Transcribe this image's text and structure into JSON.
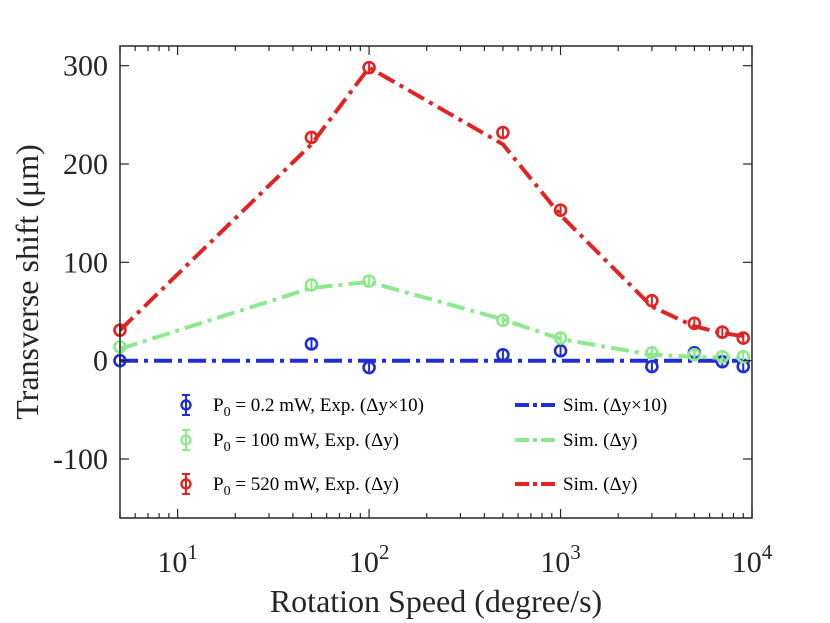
{
  "chart_data": {
    "type": "scatter",
    "xlabel": "Rotation Speed (degree/s)",
    "ylabel": "Transverse shift (μm)",
    "xscale": "log",
    "xlim": [
      5,
      10000
    ],
    "ylim": [
      -160,
      320
    ],
    "grid": false,
    "legend_placement": "bottom-center",
    "x_ticks": [
      {
        "value": 10,
        "base": "10",
        "exp": "1"
      },
      {
        "value": 100,
        "base": "10",
        "exp": "2"
      },
      {
        "value": 1000,
        "base": "10",
        "exp": "3"
      },
      {
        "value": 10000,
        "base": "10",
        "exp": "4"
      }
    ],
    "y_ticks": [
      {
        "value": 300,
        "label": "300"
      },
      {
        "value": 200,
        "label": "200"
      },
      {
        "value": 100,
        "label": "100"
      },
      {
        "value": 0,
        "label": "0"
      },
      {
        "value": -100,
        "label": "-100"
      }
    ],
    "experiment_series": [
      {
        "color": "#1f2ed6",
        "x": [
          5,
          50,
          100,
          500,
          1000,
          3000,
          5000,
          7000,
          9000
        ],
        "y": [
          0,
          17,
          -7,
          6,
          10,
          -6,
          8,
          -1,
          -6
        ],
        "legend": {
          "prefix": "P",
          "sub": "0",
          "suffix": " = 0.2 mW, Exp. (Δy×10)"
        }
      },
      {
        "color": "#8ee88e",
        "x": [
          5,
          50,
          100,
          500,
          1000,
          3000,
          5000,
          7000,
          9000
        ],
        "y": [
          14,
          77,
          81,
          41,
          23,
          8,
          6,
          4,
          4
        ],
        "legend": {
          "prefix": "P",
          "sub": "0",
          "suffix": " = 100 mW, Exp. (Δy)"
        }
      },
      {
        "color": "#e02424",
        "x": [
          5,
          50,
          100,
          500,
          1000,
          3000,
          5000,
          7000,
          9000
        ],
        "y": [
          31,
          227,
          298,
          232,
          153,
          61,
          38,
          29,
          23
        ],
        "legend": {
          "prefix": "P",
          "sub": "0",
          "suffix": " = 520 mW, Exp. (Δy)"
        }
      }
    ],
    "simulation_series": [
      {
        "color": "#1f2ed6",
        "x": [
          5,
          10,
          100,
          1000,
          10000
        ],
        "y": [
          0,
          0,
          0,
          0,
          0
        ],
        "legend": "Sim. (Δy×10)"
      },
      {
        "color": "#8ee88e",
        "x": [
          5,
          50,
          100,
          500,
          1000,
          3000,
          5000,
          7000,
          9000
        ],
        "y": [
          12,
          74,
          80,
          42,
          22,
          6,
          4,
          3,
          3
        ],
        "legend": "Sim. (Δy)"
      },
      {
        "color": "#e02424",
        "x": [
          5,
          50,
          100,
          500,
          1000,
          3000,
          5000,
          7000,
          9000
        ],
        "y": [
          31,
          220,
          298,
          220,
          148,
          55,
          35,
          28,
          25
        ],
        "legend": "Sim. (Δy)"
      }
    ]
  }
}
